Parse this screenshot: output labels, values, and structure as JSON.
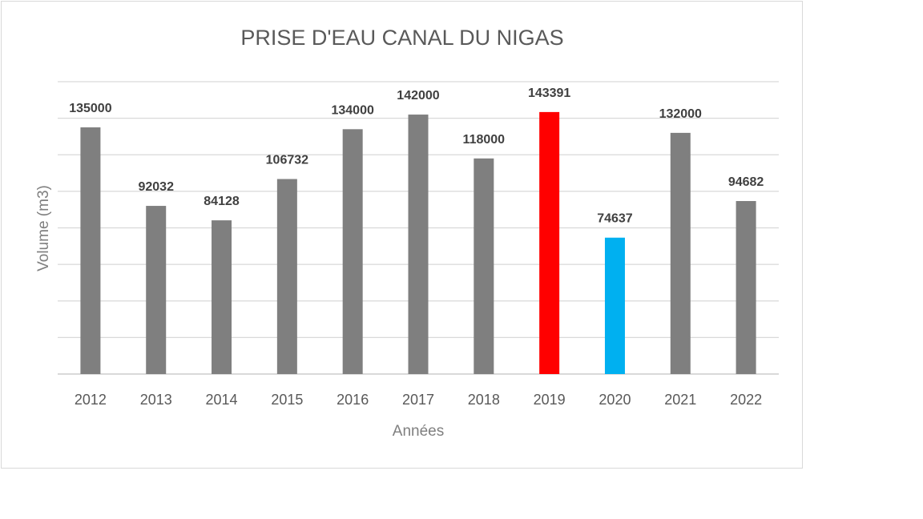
{
  "chart_data": {
    "type": "bar",
    "title": "PRISE D'EAU CANAL DU NIGAS",
    "xlabel": "Années",
    "ylabel": "Volume (m3)",
    "categories": [
      "2012",
      "2013",
      "2014",
      "2015",
      "2016",
      "2017",
      "2018",
      "2019",
      "2020",
      "2021",
      "2022"
    ],
    "values": [
      135000,
      92032,
      84128,
      106732,
      134000,
      142000,
      118000,
      143391,
      74637,
      132000,
      94682
    ],
    "data_labels": [
      "135000",
      "92032",
      "84128",
      "106732",
      "134000",
      "142000",
      "118000",
      "143391",
      "74637",
      "132000",
      "94682"
    ],
    "bar_colors": [
      "#7f7f7f",
      "#7f7f7f",
      "#7f7f7f",
      "#7f7f7f",
      "#7f7f7f",
      "#7f7f7f",
      "#7f7f7f",
      "#ff0000",
      "#00b0f0",
      "#7f7f7f",
      "#7f7f7f"
    ],
    "ylim": [
      0,
      160000
    ],
    "y_gridline_step": 20000,
    "y_tick_labels_shown": false,
    "grid": true,
    "legend": "none"
  }
}
